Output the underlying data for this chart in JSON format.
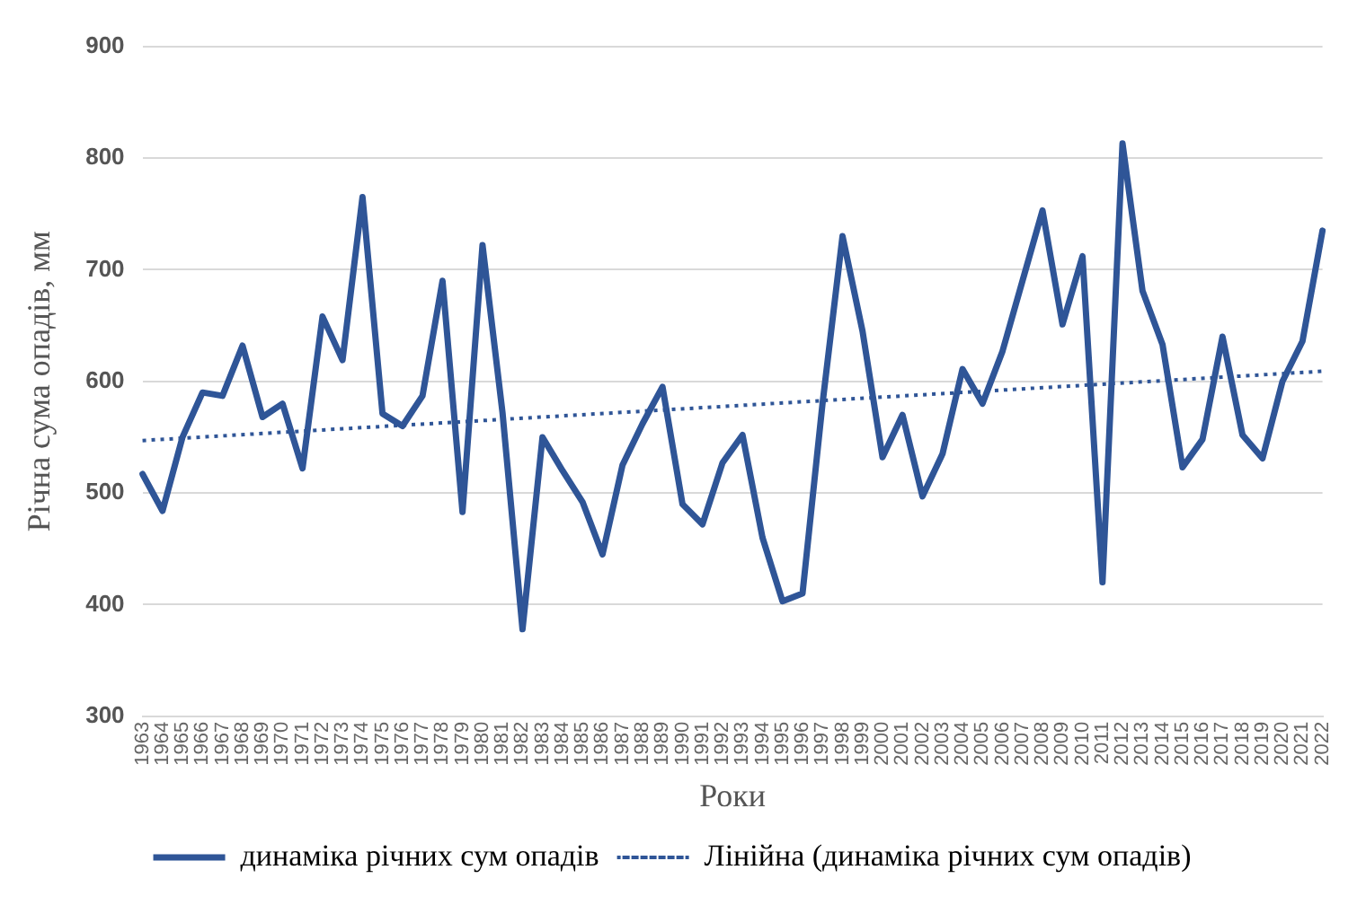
{
  "chart_data": {
    "type": "line",
    "xlabel": "Роки",
    "ylabel": "Річна сума опадів, мм",
    "categories": [
      "1963",
      "1964",
      "1965",
      "1966",
      "1967",
      "1968",
      "1969",
      "1970",
      "1971",
      "1972",
      "1973",
      "1974",
      "1975",
      "1976",
      "1977",
      "1978",
      "1979",
      "1980",
      "1981",
      "1982",
      "1983",
      "1984",
      "1985",
      "1986",
      "1987",
      "1988",
      "1989",
      "1990",
      "1991",
      "1992",
      "1993",
      "1994",
      "1995",
      "1996",
      "1997",
      "1998",
      "1999",
      "2000",
      "2001",
      "2002",
      "2003",
      "2004",
      "2005",
      "2006",
      "2007",
      "2008",
      "2009",
      "2010",
      "2011",
      "2012",
      "2013",
      "2014",
      "2015",
      "2016",
      "2017",
      "2018",
      "2019",
      "2020",
      "2021",
      "2022"
    ],
    "series": [
      {
        "name": "динаміка річних сум опадів",
        "color": "#2f5597",
        "line_style": "solid",
        "values": [
          517,
          484,
          550,
          590,
          587,
          632,
          568,
          580,
          522,
          658,
          619,
          765,
          571,
          560,
          587,
          690,
          483,
          722,
          572,
          378,
          550,
          520,
          492,
          445,
          525,
          562,
          595,
          490,
          472,
          527,
          552,
          460,
          403,
          410,
          580,
          730,
          645,
          532,
          570,
          497,
          535,
          611,
          580,
          627,
          690,
          753,
          651,
          712,
          420,
          813,
          681,
          633,
          523,
          548,
          640,
          552,
          531,
          600,
          636,
          735
        ]
      },
      {
        "name": "Лінійна (динаміка річних сум опадів)",
        "color": "#2f5597",
        "line_style": "dotted",
        "values": [
          547,
          null,
          null,
          null,
          null,
          null,
          null,
          null,
          null,
          null,
          null,
          null,
          null,
          null,
          null,
          null,
          null,
          null,
          null,
          null,
          null,
          null,
          null,
          null,
          null,
          null,
          null,
          null,
          null,
          null,
          null,
          null,
          null,
          null,
          null,
          null,
          null,
          null,
          null,
          null,
          null,
          null,
          null,
          null,
          null,
          null,
          null,
          null,
          null,
          null,
          null,
          null,
          null,
          null,
          null,
          null,
          null,
          null,
          null,
          609
        ]
      }
    ],
    "ylim": [
      300,
      900
    ],
    "yticks": [
      300,
      400,
      500,
      600,
      700,
      800,
      900
    ],
    "grid": "y",
    "legend": "bottom",
    "marker": "none"
  }
}
